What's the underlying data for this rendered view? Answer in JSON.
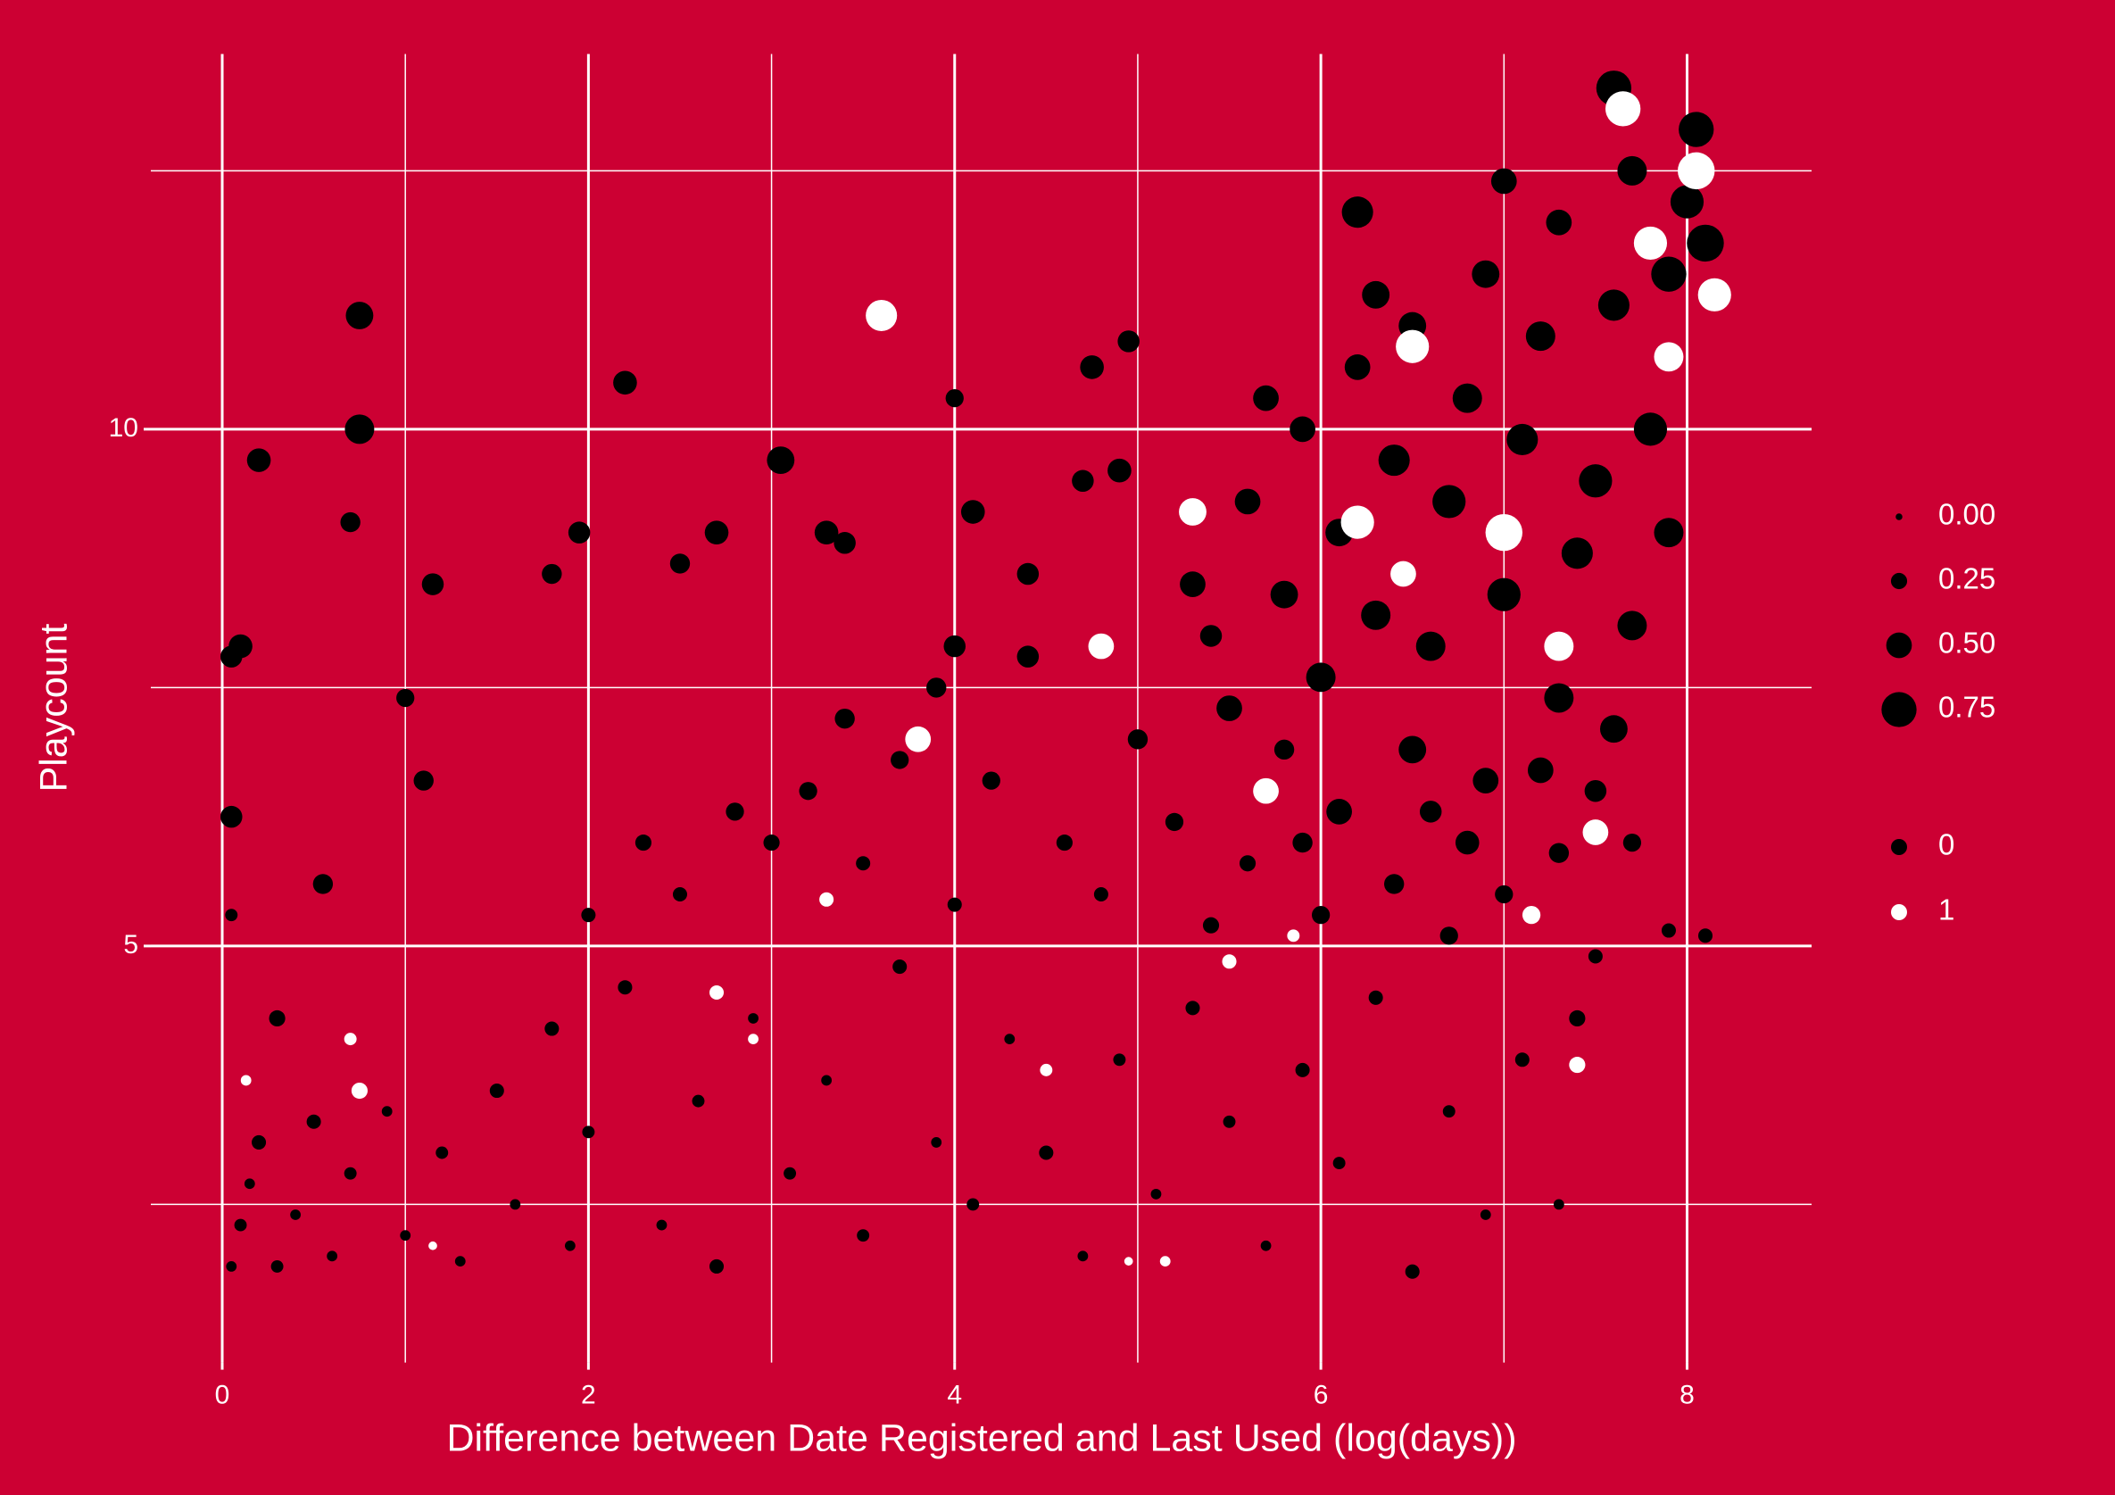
{
  "chart_data": {
    "type": "scatter",
    "x_label": "Difference between Date Registered and Last Used (log(days))",
    "y_label": "Playcount",
    "xlim": [
      -0.39,
      8.68
    ],
    "ylim": [
      0.97,
      13.63
    ],
    "xticks": [
      0,
      2,
      4,
      6,
      8
    ],
    "yticks": [
      5,
      10
    ],
    "minor_xticks": [
      1,
      3,
      5,
      7
    ],
    "minor_yticks": [
      2.5,
      7.5,
      12.5
    ],
    "grid": true,
    "background": "#cc0033",
    "size_legend": [
      {
        "value": 0,
        "label": "0.00"
      },
      {
        "value": 0.25,
        "label": "0.25"
      },
      {
        "value": 0.5,
        "label": "0.50"
      },
      {
        "value": 0.75,
        "label": "0.75"
      }
    ],
    "series": [
      {
        "name": "0",
        "color": "#000000",
        "x": [
          0.05,
          0.1,
          0.15,
          0.2,
          0.3,
          0.4,
          0.5,
          0.6,
          0.7,
          0.9,
          1.0,
          1.2,
          1.3,
          1.5,
          1.6,
          1.8,
          1.9,
          2.0,
          0.3,
          0.05,
          2.2,
          2.4,
          2.6,
          2.7,
          2.9,
          3.1,
          3.3,
          3.5,
          3.7,
          3.9,
          4.1,
          4.3,
          4.5,
          4.7,
          4.9,
          5.1,
          5.3,
          5.5,
          5.7,
          5.9,
          6.1,
          6.3,
          6.5,
          6.7,
          6.9,
          7.1,
          7.3,
          7.4,
          7.5,
          7.9,
          2.0,
          2.3,
          2.5,
          2.8,
          3.0,
          3.2,
          3.4,
          3.5,
          3.7,
          3.9,
          4.0,
          4.2,
          4.4,
          4.6,
          4.8,
          5.0,
          5.2,
          5.4,
          5.6,
          5.8,
          1.8,
          2.5,
          2.7,
          3.3,
          3.4,
          4.1,
          4.0,
          4.4,
          4.7,
          4.9,
          5.6,
          5.8,
          5.9,
          6.0,
          6.1,
          6.2,
          6.3,
          6.4,
          6.5,
          6.6,
          6.7,
          6.8,
          6.9,
          7.0,
          7.1,
          7.2,
          7.3,
          7.4,
          7.5,
          7.6,
          7.7,
          7.8,
          7.9,
          8.0,
          8.1,
          8.05,
          7.9,
          7.7,
          7.3,
          6.9,
          6.5,
          6.1,
          6.8,
          7.2,
          7.6,
          5.3,
          5.5,
          5.7,
          6.3,
          7.0,
          6.0,
          6.4,
          6.7,
          7.0,
          7.3,
          7.7,
          5.9,
          6.6,
          7.5,
          5.4,
          0.75,
          0.75,
          0.2,
          0.05,
          0.1,
          1.15,
          2.2,
          3.05,
          4.95,
          7.6,
          6.2,
          0.05,
          0.7,
          1.95,
          4.75,
          4.0,
          0.55,
          1.0,
          1.1,
          8.1
        ],
        "values": [
          1.9,
          2.3,
          2.7,
          3.1,
          1.9,
          2.4,
          3.3,
          2.0,
          2.8,
          3.4,
          2.2,
          3.0,
          1.95,
          3.6,
          2.5,
          4.2,
          2.1,
          3.2,
          4.3,
          5.3,
          4.6,
          2.3,
          3.5,
          1.9,
          4.3,
          2.8,
          3.7,
          2.2,
          4.8,
          3.1,
          2.5,
          4.1,
          3.0,
          2.0,
          3.9,
          2.6,
          4.4,
          3.3,
          2.1,
          3.8,
          2.9,
          4.5,
          1.85,
          3.4,
          2.4,
          3.9,
          2.5,
          4.3,
          4.9,
          5.15,
          5.3,
          6.0,
          5.5,
          6.3,
          6.0,
          6.5,
          7.2,
          5.8,
          6.8,
          7.5,
          5.4,
          6.6,
          7.8,
          6.0,
          5.5,
          7.0,
          6.2,
          8.0,
          5.8,
          6.9,
          8.6,
          8.7,
          9.0,
          9.0,
          8.9,
          9.2,
          7.9,
          8.6,
          9.5,
          9.6,
          9.3,
          8.4,
          10.0,
          7.6,
          9.0,
          10.6,
          8.2,
          9.7,
          11.0,
          7.9,
          9.3,
          10.3,
          11.5,
          8.4,
          9.9,
          10.9,
          12.0,
          8.8,
          9.5,
          11.2,
          12.5,
          10.0,
          11.5,
          12.2,
          11.8,
          12.9,
          9.0,
          8.1,
          7.4,
          6.6,
          6.9,
          6.3,
          6.0,
          6.7,
          7.1,
          8.5,
          7.3,
          10.3,
          11.3,
          12.4,
          5.3,
          5.6,
          5.1,
          5.5,
          5.9,
          6.0,
          6.0,
          6.3,
          6.5,
          5.2,
          11.1,
          10.0,
          9.7,
          7.8,
          7.9,
          8.5,
          10.45,
          9.7,
          10.85,
          13.3,
          12.1,
          6.25,
          9.1,
          9.0,
          10.6,
          10.3,
          5.6,
          7.4,
          6.6,
          5.1
        ],
        "sizes": [
          0.1,
          0.15,
          0.1,
          0.2,
          0.15,
          0.1,
          0.2,
          0.1,
          0.15,
          0.1,
          0.1,
          0.15,
          0.1,
          0.2,
          0.1,
          0.2,
          0.1,
          0.15,
          0.25,
          0.15,
          0.2,
          0.1,
          0.15,
          0.2,
          0.1,
          0.15,
          0.1,
          0.15,
          0.2,
          0.1,
          0.15,
          0.1,
          0.2,
          0.1,
          0.15,
          0.1,
          0.2,
          0.15,
          0.1,
          0.2,
          0.15,
          0.2,
          0.2,
          0.15,
          0.1,
          0.2,
          0.1,
          0.25,
          0.2,
          0.2,
          0.2,
          0.25,
          0.2,
          0.3,
          0.25,
          0.3,
          0.35,
          0.2,
          0.3,
          0.35,
          0.2,
          0.3,
          0.4,
          0.25,
          0.2,
          0.35,
          0.3,
          0.4,
          0.25,
          0.35,
          0.35,
          0.35,
          0.45,
          0.45,
          0.4,
          0.45,
          0.4,
          0.4,
          0.4,
          0.45,
          0.5,
          0.55,
          0.5,
          0.6,
          0.55,
          0.5,
          0.6,
          0.65,
          0.55,
          0.6,
          0.7,
          0.6,
          0.55,
          0.7,
          0.65,
          0.6,
          0.5,
          0.65,
          0.7,
          0.65,
          0.6,
          0.7,
          0.75,
          0.7,
          0.8,
          0.75,
          0.6,
          0.6,
          0.6,
          0.5,
          0.55,
          0.5,
          0.45,
          0.5,
          0.55,
          0.5,
          0.5,
          0.5,
          0.55,
          0.5,
          0.3,
          0.35,
          0.3,
          0.3,
          0.35,
          0.3,
          0.35,
          0.4,
          0.4,
          0.25,
          0.55,
          0.6,
          0.45,
          0.4,
          0.45,
          0.4,
          0.45,
          0.55,
          0.4,
          0.75,
          0.65,
          0.4,
          0.35,
          0.4,
          0.45,
          0.3,
          0.35,
          0.3,
          0.35,
          0.2
        ]
      },
      {
        "name": "1",
        "color": "#ffffff",
        "x": [
          3.6,
          7.65,
          8.05,
          6.5,
          7.0,
          5.7,
          4.8,
          7.3,
          7.5,
          7.15,
          5.5,
          2.7,
          0.7,
          0.75,
          0.13,
          5.15,
          4.95,
          3.3,
          7.4,
          4.5,
          6.2,
          7.9,
          5.3,
          8.15,
          7.8,
          6.45,
          5.85,
          2.9,
          3.8,
          1.15
        ],
        "values": [
          11.1,
          13.1,
          12.5,
          10.8,
          9.0,
          6.5,
          7.9,
          7.9,
          6.1,
          5.3,
          4.85,
          4.55,
          4.1,
          3.6,
          3.7,
          1.95,
          1.95,
          5.45,
          3.85,
          3.8,
          9.1,
          10.7,
          9.2,
          11.3,
          11.8,
          8.6,
          5.1,
          4.1,
          7.0,
          2.1
        ],
        "sizes": [
          0.65,
          0.75,
          0.8,
          0.7,
          0.8,
          0.5,
          0.5,
          0.6,
          0.5,
          0.3,
          0.2,
          0.2,
          0.15,
          0.25,
          0.1,
          0.1,
          0.05,
          0.2,
          0.25,
          0.15,
          0.7,
          0.6,
          0.55,
          0.7,
          0.7,
          0.5,
          0.15,
          0.1,
          0.5,
          0.05
        ]
      }
    ]
  }
}
